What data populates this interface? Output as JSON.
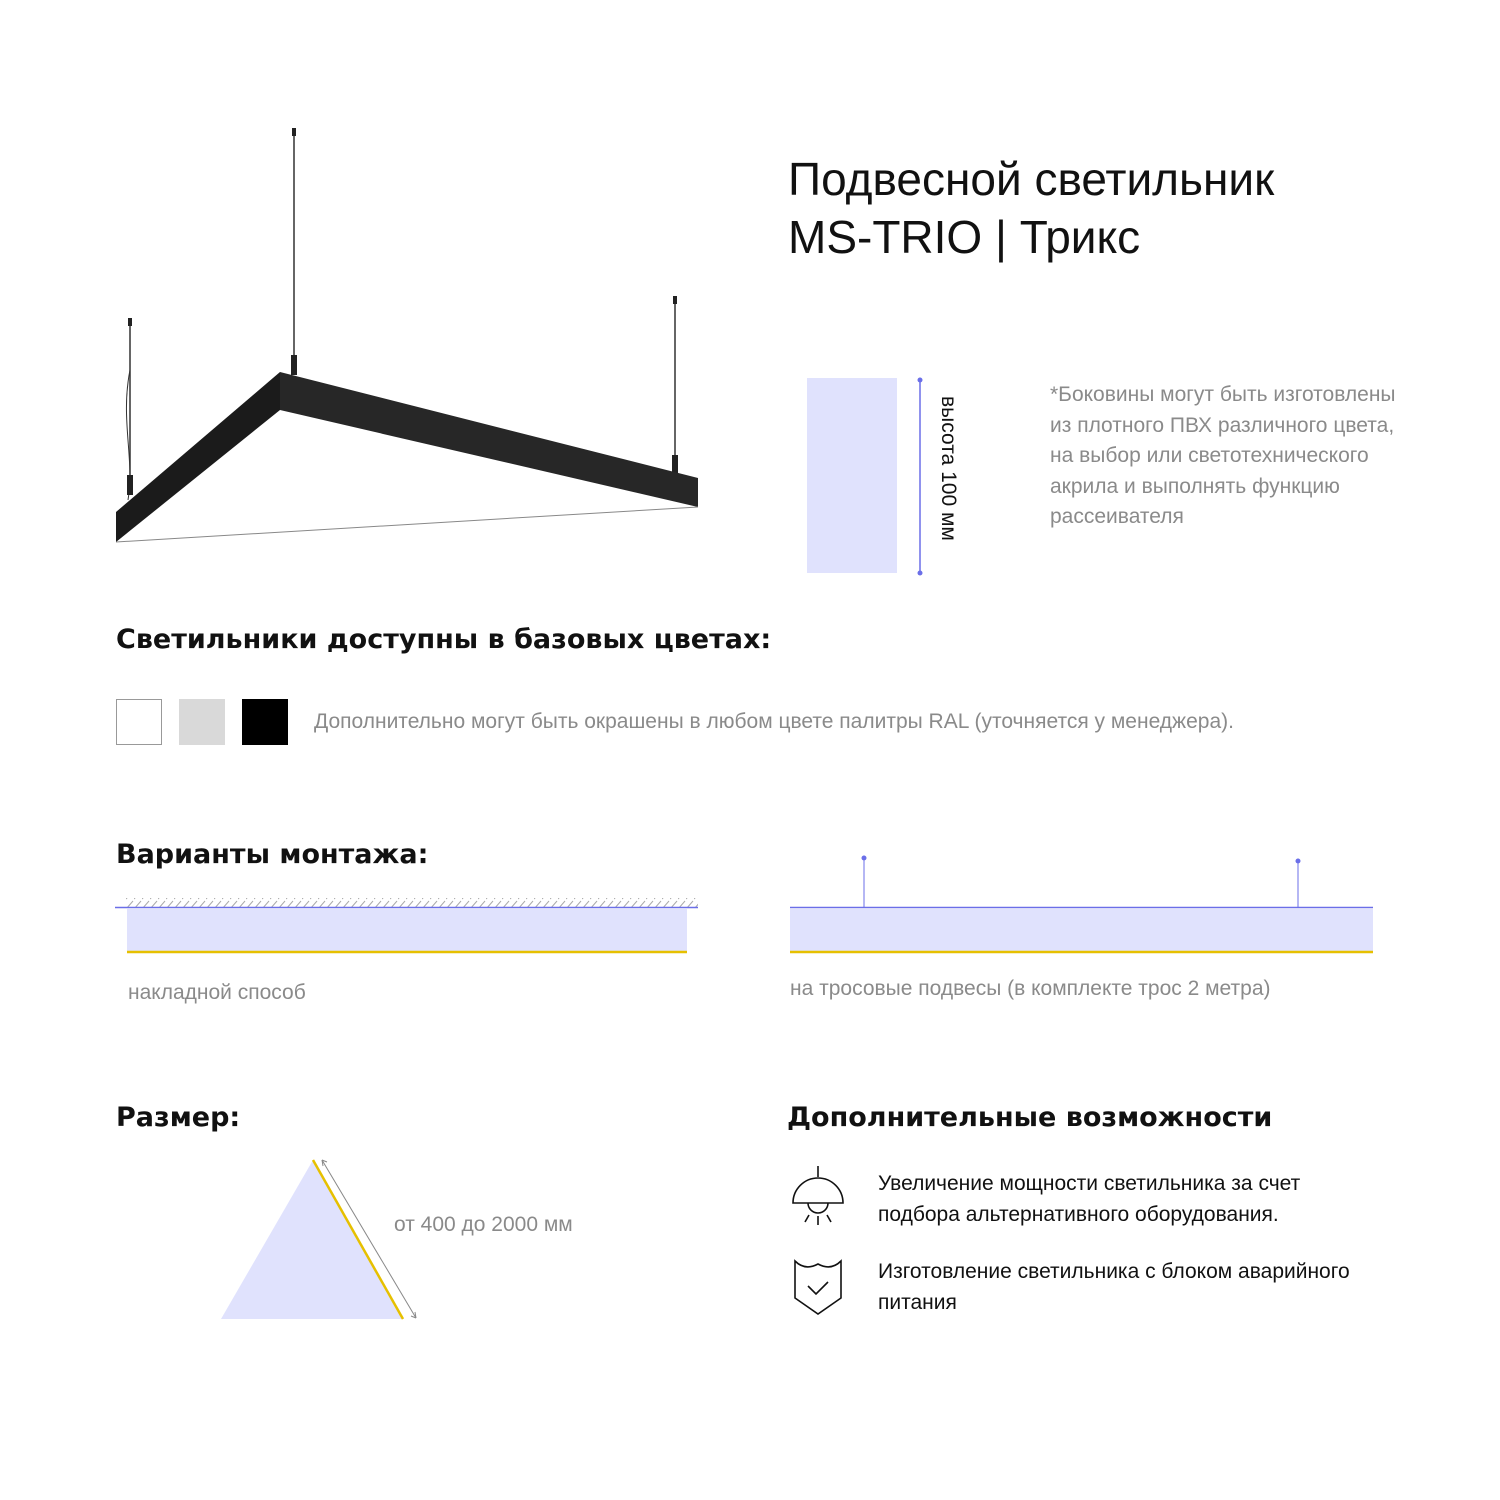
{
  "header": {
    "title_line1": "Подвесной светильник",
    "title_line2": "MS-TRIO | Трикс"
  },
  "height_dim": {
    "label": "высота 100 мм"
  },
  "note": "*Боковины могут быть изготовлены из плотного ПВХ различного цвета, на выбор или светотехнического акрила и выполнять функцию рассеивателя",
  "colors_section": {
    "heading": "Светильники доступны в базовых цветах:",
    "swatches": [
      {
        "color": "#ffffff"
      },
      {
        "color": "#d9d9d9"
      },
      {
        "color": "#000000"
      }
    ],
    "text": "Дополнительно могут быть окрашены в любом цвете палитры RAL (уточняется у менеджера)."
  },
  "mounting": {
    "heading": "Варианты монтажа:",
    "surface_label": "накладной способ",
    "cable_label": "на тросовые подвесы (в комплекте трос 2 метра)"
  },
  "size": {
    "heading": "Размер:",
    "label": "от 400 до 2000 мм"
  },
  "extras": {
    "heading": "Дополнительные возможности",
    "items": [
      {
        "icon": "pendant-lamp-icon",
        "text": "Увеличение мощности светильника за счет подбора альтернативного оборудования."
      },
      {
        "icon": "shield-check-icon",
        "text": "Изготовление светильника с блоком аварийного питания"
      }
    ]
  },
  "palette": {
    "fill": "#e0e2fd",
    "accent_line": "#6b6fe8",
    "led": "#e6c000"
  }
}
